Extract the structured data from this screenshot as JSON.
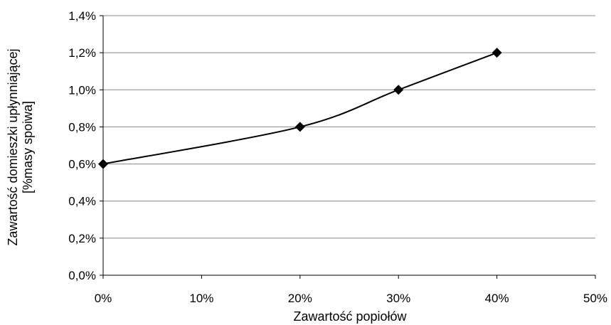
{
  "chart_data": {
    "type": "line",
    "title": "",
    "xlabel": "Zawartość popiołów",
    "ylabel_lines": [
      "Zawartość domieszki upłynniającej",
      "[%masy spoiwa]"
    ],
    "x_ticks": [
      "0%",
      "10%",
      "20%",
      "30%",
      "40%",
      "50%"
    ],
    "y_ticks": [
      "0,0%",
      "0,2%",
      "0,4%",
      "0,6%",
      "0,8%",
      "1,0%",
      "1,2%",
      "1,4%"
    ],
    "xlim": [
      0,
      50
    ],
    "ylim": [
      0,
      1.4
    ],
    "grid": {
      "y_major": true,
      "x_major": false
    },
    "legend": "none",
    "series": [
      {
        "x": [
          0,
          20,
          30,
          40
        ],
        "values": [
          0.6,
          0.8,
          1.0,
          1.2
        ],
        "color": "#000000",
        "marker": "diamond"
      }
    ]
  }
}
